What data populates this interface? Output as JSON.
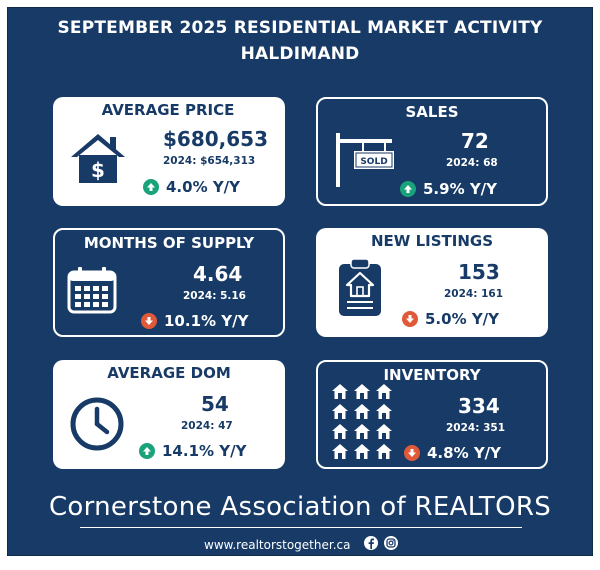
{
  "header": {
    "title_line1": "SEPTEMBER 2025 RESIDENTIAL MARKET ACTIVITY",
    "title_line2": "HALDIMAND"
  },
  "cards": {
    "average_price": {
      "title": "AVERAGE PRICE",
      "value": "$680,653",
      "prev": "2024: $654,313",
      "change": "4.0% Y/Y",
      "direction": "up",
      "icon": "house-dollar-icon"
    },
    "sales": {
      "title": "SALES",
      "value": "72",
      "prev": "2024: 68",
      "change": "5.9% Y/Y",
      "direction": "up",
      "icon": "sold-sign-icon",
      "sign_text": "SOLD"
    },
    "months_supply": {
      "title": "MONTHS OF SUPPLY",
      "value": "4.64",
      "prev": "2024: 5.16",
      "change": "10.1% Y/Y",
      "direction": "down",
      "icon": "calendar-icon"
    },
    "new_listings": {
      "title": "NEW LISTINGS",
      "value": "153",
      "prev": "2024: 161",
      "change": "5.0% Y/Y",
      "direction": "down",
      "icon": "clipboard-house-icon"
    },
    "average_dom": {
      "title": "AVERAGE DOM",
      "value": "54",
      "prev": "2024: 47",
      "change": "14.1% Y/Y",
      "direction": "up",
      "icon": "clock-icon"
    },
    "inventory": {
      "title": "INVENTORY",
      "value": "334",
      "prev": "2024: 351",
      "change": "4.8% Y/Y",
      "direction": "down",
      "icon": "houses-grid-icon"
    }
  },
  "colors": {
    "navy": "#173a66",
    "up": "#1aa37a",
    "down": "#e05a3a",
    "white": "#ffffff"
  },
  "footer": {
    "organization": "Cornerstone Association of REALTORS",
    "website": "www.realtorstogether.ca",
    "social_icons": [
      "facebook-icon",
      "instagram-icon"
    ]
  }
}
